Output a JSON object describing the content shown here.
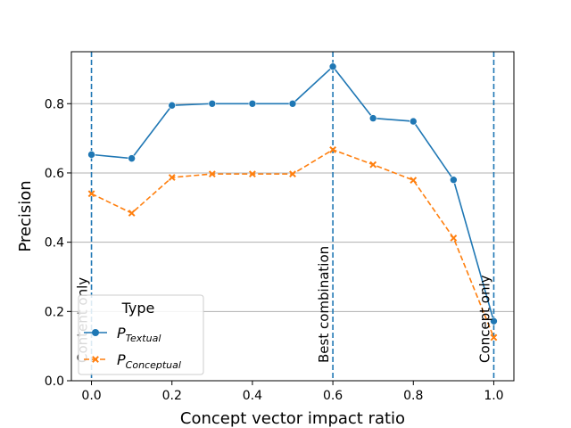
{
  "chart_data": {
    "type": "line",
    "xlabel": "Concept vector impact ratio",
    "ylabel": "Precision",
    "xlim": [
      -0.05,
      1.05
    ],
    "ylim": [
      0.0,
      0.95
    ],
    "x": [
      0.0,
      0.1,
      0.2,
      0.3,
      0.4,
      0.5,
      0.6,
      0.7,
      0.8,
      0.9,
      1.0
    ],
    "xticks": [
      "0.0",
      "0.2",
      "0.4",
      "0.6",
      "0.8",
      "1.0"
    ],
    "yticks": [
      "0.0",
      "0.2",
      "0.4",
      "0.6",
      "0.8"
    ],
    "grid": "horizontal",
    "legend": {
      "title": "Type",
      "placement": "lower-left"
    },
    "series": [
      {
        "name": "P_Textual",
        "name_main": "P",
        "name_sub": "Textual",
        "color": "#1f77b4",
        "line_style": "solid",
        "marker": "circle",
        "values": [
          0.653,
          0.642,
          0.795,
          0.8,
          0.8,
          0.8,
          0.907,
          0.758,
          0.749,
          0.58,
          0.172
        ]
      },
      {
        "name": "P_Conceptual",
        "name_main": "P",
        "name_sub": "Conceptual",
        "color": "#ff7f0e",
        "line_style": "dashed",
        "marker": "x",
        "values": [
          0.54,
          0.484,
          0.587,
          0.597,
          0.597,
          0.597,
          0.667,
          0.624,
          0.579,
          0.412,
          0.125
        ]
      }
    ],
    "reference_lines": [
      {
        "x": 0.0,
        "label": "Content only",
        "color": "#1f77b4"
      },
      {
        "x": 0.6,
        "label": "Best combination",
        "color": "#1f77b4"
      },
      {
        "x": 1.0,
        "label": "Concept only",
        "color": "#1f77b4"
      }
    ]
  }
}
